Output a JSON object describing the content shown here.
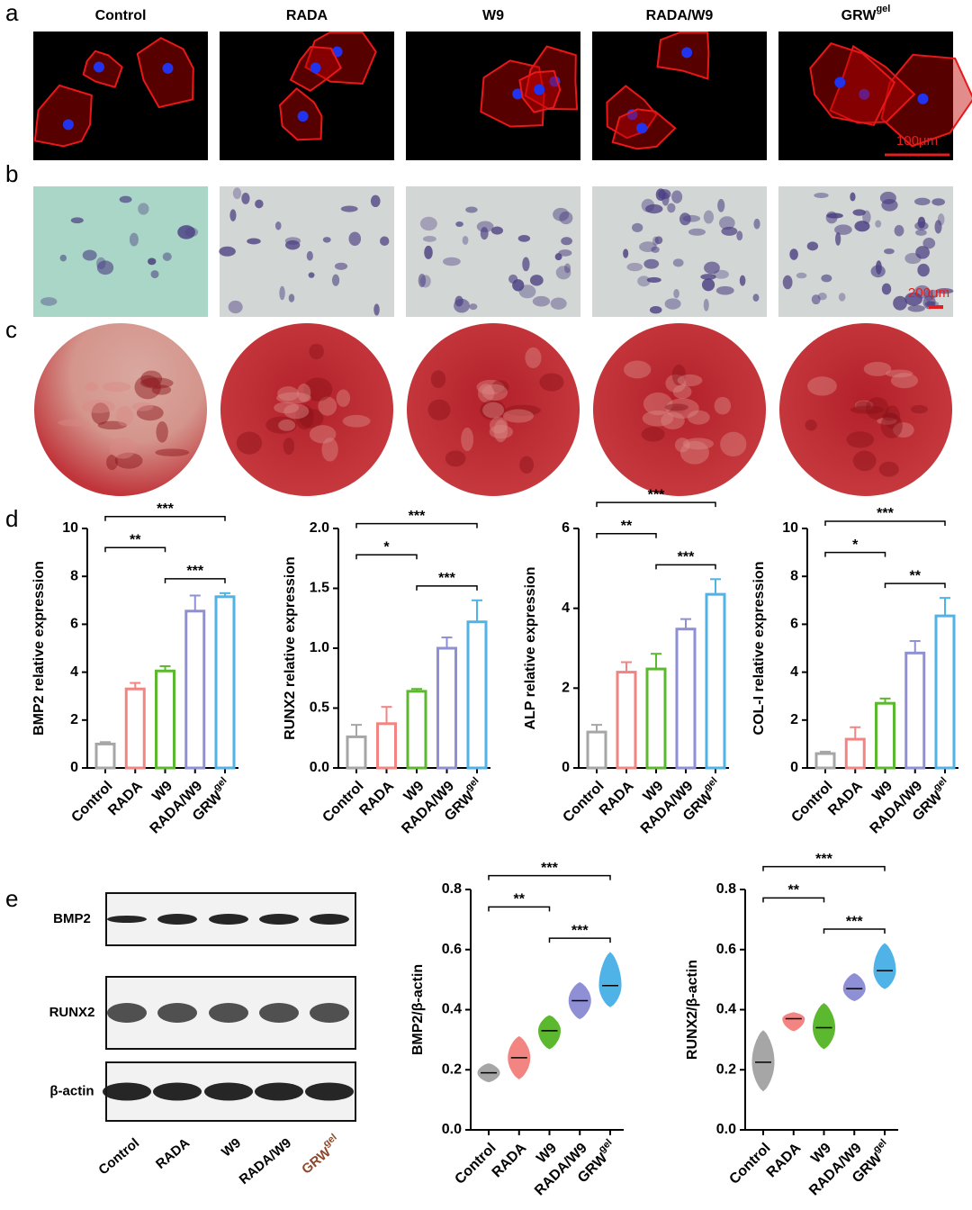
{
  "panel_labels": [
    "a",
    "b",
    "c",
    "d",
    "e"
  ],
  "image_panels": {
    "groups": [
      "Control",
      "RADA",
      "W9",
      "RADA/W9",
      "GRW"
    ],
    "superscript": "gel",
    "scale_bars": [
      "100μm",
      "200μm"
    ]
  },
  "western_blot": {
    "rows": [
      "BMP2",
      "RUNX2",
      "β-actin"
    ],
    "lanes": [
      "Control",
      "RADA",
      "W9",
      "RADA/W9",
      "GRW"
    ],
    "superscript": "gel"
  },
  "chart_data": [
    {
      "type": "bar",
      "y_label": "BMP2 relative expression",
      "categories": [
        "Control",
        "RADA",
        "W9",
        "RADA/W9",
        "GRW"
      ],
      "category_superscript": "gel",
      "values": [
        1.0,
        3.3,
        4.05,
        6.55,
        7.15
      ],
      "errors": [
        0.08,
        0.25,
        0.2,
        0.65,
        0.15
      ],
      "colors": [
        "#a6a6a6",
        "#f28482",
        "#5cb82e",
        "#8f8fd6",
        "#4fb3e8"
      ],
      "ylim": [
        0,
        10
      ],
      "yticks": [
        0,
        2,
        4,
        6,
        8,
        10
      ],
      "significance": [
        {
          "groups": [
            0,
            4
          ],
          "label": "***"
        },
        {
          "groups": [
            2,
            4
          ],
          "label": "***"
        },
        {
          "groups": [
            0,
            2
          ],
          "label": "**"
        }
      ]
    },
    {
      "type": "bar",
      "y_label": "RUNX2 relative expression",
      "categories": [
        "Control",
        "RADA",
        "W9",
        "RADA/W9",
        "GRW"
      ],
      "category_superscript": "gel",
      "values": [
        0.26,
        0.37,
        0.64,
        1.0,
        1.22
      ],
      "errors": [
        0.1,
        0.14,
        0.02,
        0.09,
        0.18
      ],
      "colors": [
        "#a6a6a6",
        "#f28482",
        "#5cb82e",
        "#8f8fd6",
        "#4fb3e8"
      ],
      "ylim": [
        0,
        2
      ],
      "yticks": [
        {
          "value": 0,
          "label": "0.0"
        },
        0.5,
        {
          "value": 1,
          "label": "1.0"
        },
        1.5,
        {
          "value": 2,
          "label": "2.0"
        }
      ],
      "significance": [
        {
          "groups": [
            0,
            4
          ],
          "label": "***"
        },
        {
          "groups": [
            2,
            4
          ],
          "label": "***"
        },
        {
          "groups": [
            0,
            2
          ],
          "label": "*"
        }
      ]
    },
    {
      "type": "bar",
      "y_label": "ALP relative expression",
      "categories": [
        "Control",
        "RADA",
        "W9",
        "RADA/W9",
        "GRW"
      ],
      "category_superscript": "gel",
      "values": [
        0.9,
        2.4,
        2.48,
        3.48,
        4.35
      ],
      "errors": [
        0.18,
        0.25,
        0.38,
        0.25,
        0.38
      ],
      "colors": [
        "#a6a6a6",
        "#f28482",
        "#5cb82e",
        "#8f8fd6",
        "#4fb3e8"
      ],
      "ylim": [
        0,
        6
      ],
      "yticks": [
        0,
        2,
        4,
        6
      ],
      "significance": [
        {
          "groups": [
            0,
            4
          ],
          "label": "***"
        },
        {
          "groups": [
            2,
            4
          ],
          "label": "***"
        },
        {
          "groups": [
            0,
            2
          ],
          "label": "**"
        }
      ]
    },
    {
      "type": "bar",
      "y_label": "COL-I relative expression",
      "categories": [
        "Control",
        "RADA",
        "W9",
        "RADA/W9",
        "GRW"
      ],
      "category_superscript": "gel",
      "values": [
        0.6,
        1.2,
        2.7,
        4.8,
        6.35
      ],
      "errors": [
        0.08,
        0.5,
        0.2,
        0.5,
        0.75
      ],
      "colors": [
        "#a6a6a6",
        "#f28482",
        "#5cb82e",
        "#8f8fd6",
        "#4fb3e8"
      ],
      "ylim": [
        0,
        10
      ],
      "yticks": [
        0,
        2,
        4,
        6,
        8,
        10
      ],
      "significance": [
        {
          "groups": [
            0,
            4
          ],
          "label": "***"
        },
        {
          "groups": [
            2,
            4
          ],
          "label": "**"
        },
        {
          "groups": [
            0,
            2
          ],
          "label": "*"
        }
      ]
    },
    {
      "type": "violin",
      "y_label": "BMP2/β-actin",
      "categories": [
        "Control",
        "RADA",
        "W9",
        "RADA/W9",
        "GRW"
      ],
      "category_superscript": "gel",
      "values": [
        0.19,
        0.24,
        0.33,
        0.43,
        0.48
      ],
      "min": [
        0.16,
        0.17,
        0.27,
        0.37,
        0.41
      ],
      "max": [
        0.22,
        0.31,
        0.38,
        0.49,
        0.59
      ],
      "colors": [
        "#a6a6a6",
        "#f28482",
        "#5cb82e",
        "#8f8fd6",
        "#4fb3e8"
      ],
      "ylim": [
        0,
        0.8
      ],
      "yticks": [
        {
          "value": 0,
          "label": "0.0"
        },
        0.2,
        0.4,
        0.6,
        {
          "value": 0.8,
          "label": "0.8"
        }
      ],
      "significance": [
        {
          "groups": [
            0,
            4
          ],
          "label": "***"
        },
        {
          "groups": [
            2,
            4
          ],
          "label": "***"
        },
        {
          "groups": [
            0,
            2
          ],
          "label": "**"
        }
      ]
    },
    {
      "type": "violin",
      "y_label": "RUNX2/β-actin",
      "categories": [
        "Control",
        "RADA",
        "W9",
        "RADA/W9",
        "GRW"
      ],
      "category_superscript": "gel",
      "values": [
        0.225,
        0.37,
        0.34,
        0.47,
        0.53
      ],
      "min": [
        0.13,
        0.33,
        0.27,
        0.43,
        0.47
      ],
      "max": [
        0.33,
        0.39,
        0.42,
        0.52,
        0.62
      ],
      "colors": [
        "#a6a6a6",
        "#f28482",
        "#5cb82e",
        "#8f8fd6",
        "#4fb3e8"
      ],
      "ylim": [
        0,
        0.8
      ],
      "yticks": [
        {
          "value": 0,
          "label": "0.0"
        },
        0.2,
        0.4,
        0.6,
        {
          "value": 0.8,
          "label": "0.8"
        }
      ],
      "significance": [
        {
          "groups": [
            0,
            4
          ],
          "label": "***"
        },
        {
          "groups": [
            2,
            4
          ],
          "label": "***"
        },
        {
          "groups": [
            0,
            2
          ],
          "label": "**"
        }
      ]
    }
  ]
}
